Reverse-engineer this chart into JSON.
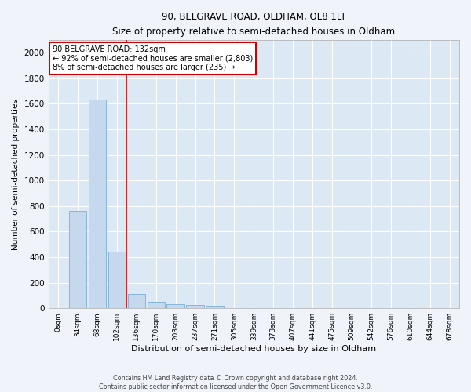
{
  "title": "90, BELGRAVE ROAD, OLDHAM, OL8 1LT",
  "subtitle": "Size of property relative to semi-detached houses in Oldham",
  "xlabel": "Distribution of semi-detached houses by size in Oldham",
  "ylabel": "Number of semi-detached properties",
  "bar_labels": [
    "0sqm",
    "34sqm",
    "68sqm",
    "102sqm",
    "136sqm",
    "170sqm",
    "203sqm",
    "237sqm",
    "271sqm",
    "305sqm",
    "339sqm",
    "373sqm",
    "407sqm",
    "441sqm",
    "475sqm",
    "509sqm",
    "542sqm",
    "576sqm",
    "610sqm",
    "644sqm",
    "678sqm"
  ],
  "bar_values": [
    0,
    760,
    1635,
    445,
    110,
    48,
    32,
    27,
    20,
    0,
    0,
    0,
    0,
    0,
    0,
    0,
    0,
    0,
    0,
    0,
    0
  ],
  "bar_color": "#c5d8ee",
  "bar_edge_color": "#7aafd4",
  "vline_color": "#cc0000",
  "annotation_title": "90 BELGRAVE ROAD: 132sqm",
  "annotation_line1": "← 92% of semi-detached houses are smaller (2,803)",
  "annotation_line2": "8% of semi-detached houses are larger (235) →",
  "annotation_box_color": "#cc0000",
  "ylim": [
    0,
    2100
  ],
  "yticks": [
    0,
    200,
    400,
    600,
    800,
    1000,
    1200,
    1400,
    1600,
    1800,
    2000
  ],
  "bg_color": "#dde8f5",
  "grid_color": "#ffffff",
  "fig_bg_color": "#f0f4fa",
  "footer_line1": "Contains HM Land Registry data © Crown copyright and database right 2024.",
  "footer_line2": "Contains public sector information licensed under the Open Government Licence v3.0."
}
